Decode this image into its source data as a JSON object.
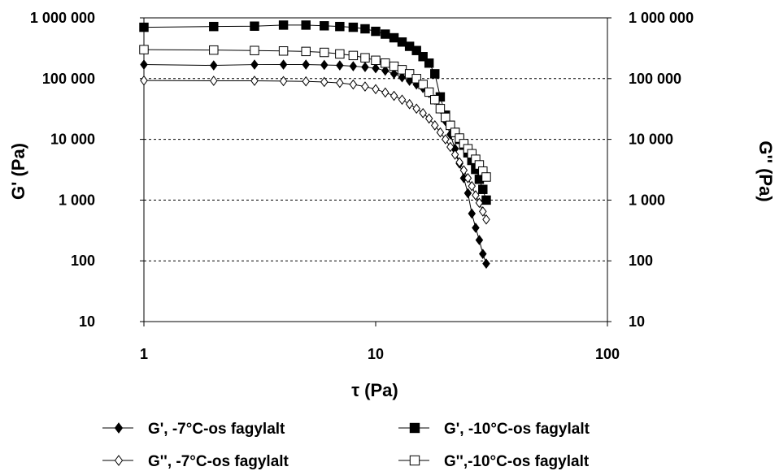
{
  "chart_data": {
    "type": "scatter",
    "x_scale": "log",
    "y_scale": "log",
    "xlabel": "τ (Pa)",
    "ylabel_left": "G' (Pa)",
    "ylabel_right": "G'' (Pa)",
    "xlim": [
      1,
      100
    ],
    "ylim": [
      10,
      1000000
    ],
    "x_ticks": [
      1,
      10,
      100
    ],
    "x_tick_labels": [
      "1",
      "10",
      "100"
    ],
    "y_ticks": [
      10,
      100,
      1000,
      10000,
      100000,
      1000000
    ],
    "y_tick_labels": [
      "10",
      "100",
      "1 000",
      "10 000",
      "100 000",
      "1 000 000"
    ],
    "grid": "dashed horizontal",
    "legend_position": "bottom",
    "series": [
      {
        "name": "G',  -7°C-os fagylalt",
        "marker": "diamond",
        "filled": true,
        "x": [
          1,
          2,
          3,
          4,
          5,
          6,
          7,
          8,
          9,
          10,
          11,
          12,
          13,
          14,
          15,
          16,
          17,
          18,
          19,
          20,
          21,
          22,
          23,
          24,
          25,
          26,
          27,
          28,
          29,
          30
        ],
        "y": [
          170000,
          165000,
          170000,
          170000,
          170000,
          168000,
          165000,
          160000,
          155000,
          148000,
          135000,
          120000,
          105000,
          92000,
          80000,
          70000,
          58000,
          45000,
          32000,
          20000,
          12000,
          7000,
          4000,
          2300,
          1300,
          600,
          350,
          220,
          130,
          90
        ]
      },
      {
        "name": "G', -10°C-os fagylalt",
        "marker": "square",
        "filled": true,
        "x": [
          1,
          2,
          3,
          4,
          5,
          6,
          7,
          8,
          9,
          10,
          11,
          12,
          13,
          14,
          15,
          16,
          17,
          18,
          19,
          20,
          21,
          22,
          23,
          24,
          25,
          26,
          27,
          28,
          29,
          30
        ],
        "y": [
          700000,
          720000,
          730000,
          760000,
          760000,
          740000,
          720000,
          700000,
          660000,
          600000,
          540000,
          470000,
          400000,
          340000,
          290000,
          230000,
          180000,
          120000,
          50000,
          25000,
          17000,
          13000,
          10000,
          8000,
          6000,
          4500,
          3200,
          2200,
          1500,
          1000
        ]
      },
      {
        "name": "G'', -7°C-os fagylalt",
        "marker": "diamond",
        "filled": false,
        "x": [
          1,
          2,
          3,
          4,
          5,
          6,
          7,
          8,
          9,
          10,
          11,
          12,
          13,
          14,
          15,
          16,
          17,
          18,
          19,
          20,
          21,
          22,
          23,
          24,
          25,
          26,
          27,
          28,
          29,
          30
        ],
        "y": [
          93000,
          92000,
          92000,
          91000,
          90000,
          88000,
          85000,
          80000,
          74000,
          67000,
          59000,
          52000,
          45000,
          38000,
          32000,
          27000,
          22000,
          17000,
          13000,
          10000,
          7500,
          5600,
          4200,
          3100,
          2300,
          1700,
          1200,
          900,
          650,
          480
        ]
      },
      {
        "name": "G'',-10°C-os fagylalt",
        "marker": "square",
        "filled": false,
        "x": [
          1,
          2,
          3,
          4,
          5,
          6,
          7,
          8,
          9,
          10,
          11,
          12,
          13,
          14,
          15,
          16,
          17,
          18,
          19,
          20,
          21,
          22,
          23,
          24,
          25,
          26,
          27,
          28,
          29,
          30
        ],
        "y": [
          300000,
          295000,
          290000,
          285000,
          280000,
          270000,
          255000,
          240000,
          220000,
          200000,
          180000,
          160000,
          140000,
          120000,
          100000,
          80000,
          60000,
          45000,
          32000,
          23000,
          17000,
          13000,
          10500,
          8500,
          7000,
          5800,
          4700,
          3800,
          3000,
          2400
        ]
      }
    ]
  }
}
